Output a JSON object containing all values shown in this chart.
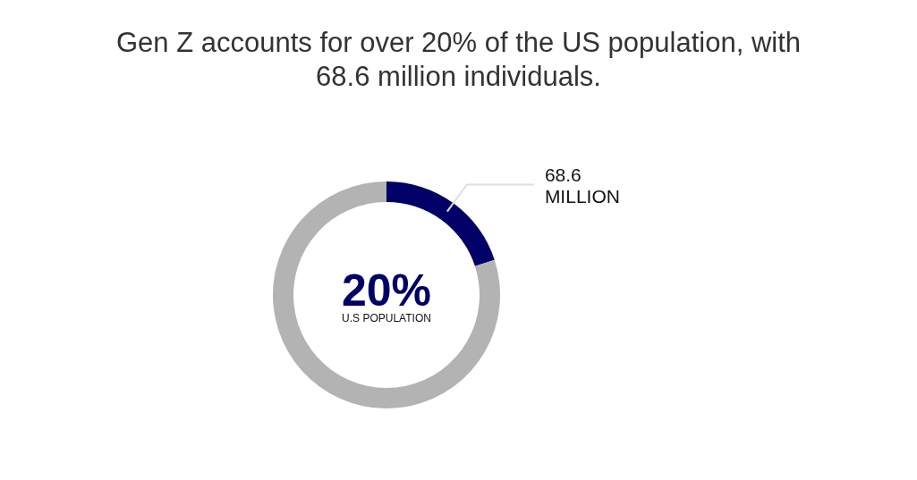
{
  "chart_data": {
    "type": "donut",
    "title": "Gen Z accounts for over 20% of the US population, with 68.6 million individuals.",
    "categories": [
      null,
      null
    ],
    "values": [
      20,
      80
    ],
    "colors": [
      "#000066",
      "#b3b3b3"
    ],
    "annotations": [
      "20%",
      "U.S POPULATION",
      "68.6 MILLION"
    ]
  }
}
